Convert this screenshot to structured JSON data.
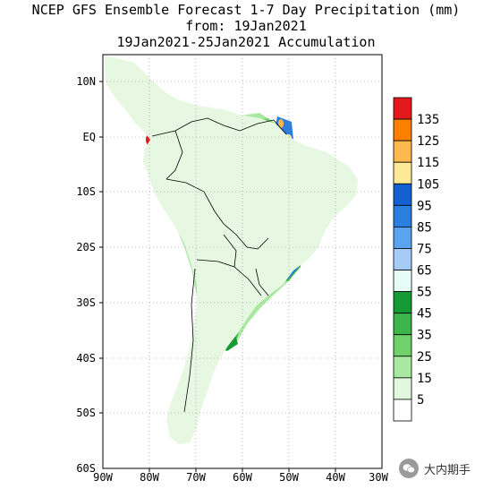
{
  "title": {
    "line1": "NCEP GFS Ensemble Forecast 1-7 Day Precipitation (mm)",
    "line2": "from: 19Jan2021",
    "line3": "19Jan2021-25Jan2021 Accumulation"
  },
  "map": {
    "lat_labels": [
      "10N",
      "EQ",
      "10S",
      "20S",
      "30S",
      "40S",
      "50S",
      "60S"
    ],
    "lon_labels": [
      "90W",
      "80W",
      "70W",
      "60W",
      "50W",
      "40W",
      "30W"
    ]
  },
  "colorbar": {
    "labels": [
      "135",
      "125",
      "115",
      "105",
      "95",
      "85",
      "75",
      "65",
      "55",
      "45",
      "35",
      "25",
      "15",
      "5"
    ],
    "colors": [
      "#e31a1c",
      "#fd7f00",
      "#fdb84e",
      "#fee998",
      "#1560d0",
      "#2b7fe0",
      "#5aa3ee",
      "#a6ccf6",
      "#e8fcf7",
      "#169a34",
      "#3cb54a",
      "#6fd16a",
      "#a9e8a0",
      "#e2f8de",
      "#ffffff"
    ]
  },
  "watermark": {
    "text": "大内期手"
  }
}
